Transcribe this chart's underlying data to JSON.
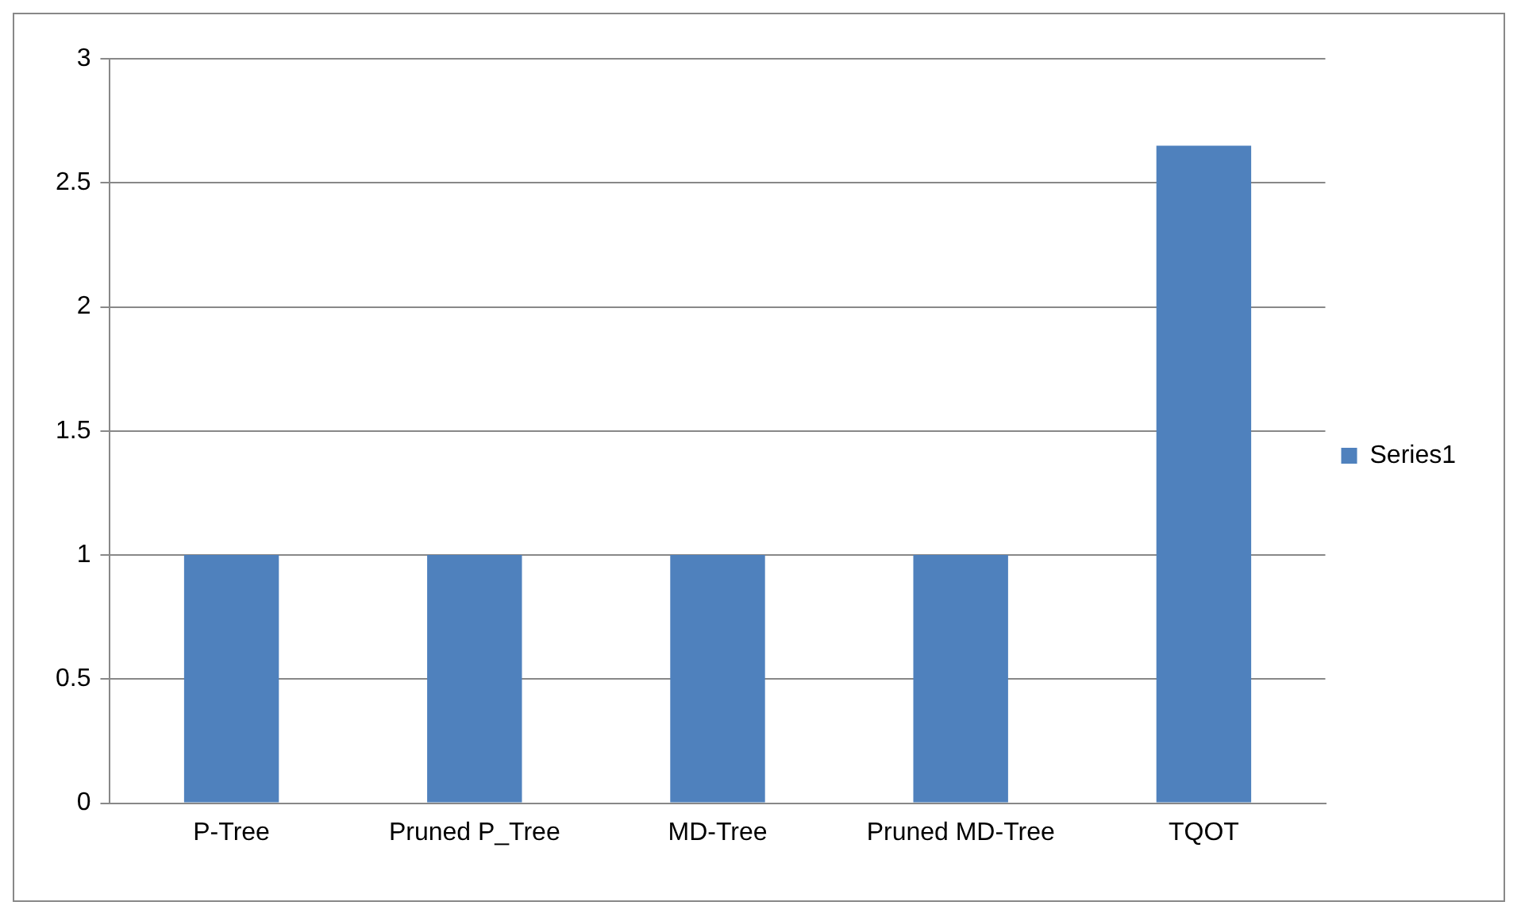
{
  "chart_data": {
    "type": "bar",
    "categories": [
      "P-Tree",
      "Pruned P_Tree",
      "MD-Tree",
      "Pruned MD-Tree",
      "TQOT"
    ],
    "series": [
      {
        "name": "Series1",
        "color": "#4f81bd",
        "values": [
          1,
          1,
          1,
          1,
          2.65
        ]
      }
    ],
    "ylim": [
      0,
      3
    ],
    "yticks": [
      0,
      0.5,
      1,
      1.5,
      2,
      2.5,
      3
    ],
    "grid": "y",
    "legend": "right"
  }
}
